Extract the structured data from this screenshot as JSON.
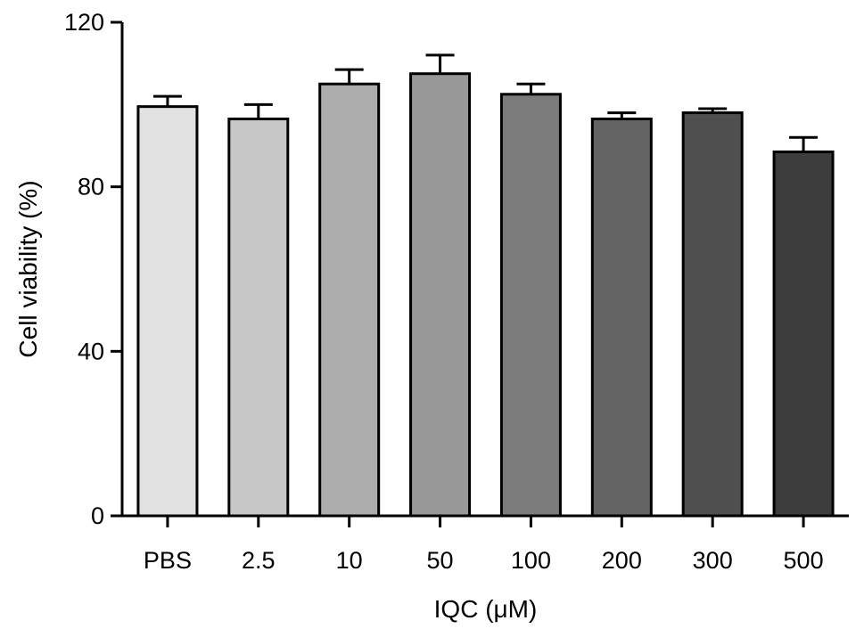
{
  "chart_data": {
    "type": "bar",
    "title": "",
    "xlabel": "IQC (μM)",
    "ylabel": "Cell viability (%)",
    "categories": [
      "PBS",
      "2.5",
      "10",
      "50",
      "100",
      "200",
      "300",
      "500"
    ],
    "values": [
      99.5,
      96.5,
      105,
      107.5,
      102.5,
      96.5,
      98,
      88.5
    ],
    "errors": [
      2.5,
      3.5,
      3.5,
      4.5,
      2.5,
      1.5,
      1,
      3.5
    ],
    "ylim": [
      0,
      120
    ],
    "yticks": [
      0,
      40,
      80,
      120
    ],
    "bar_colors": [
      "#e1e1e1",
      "#c6c6c6",
      "#adadad",
      "#989898",
      "#7b7b7b",
      "#646464",
      "#4f4f4f",
      "#3d3d3d"
    ],
    "bar_edge_color": "#000000",
    "grid": false,
    "legend": "none"
  }
}
